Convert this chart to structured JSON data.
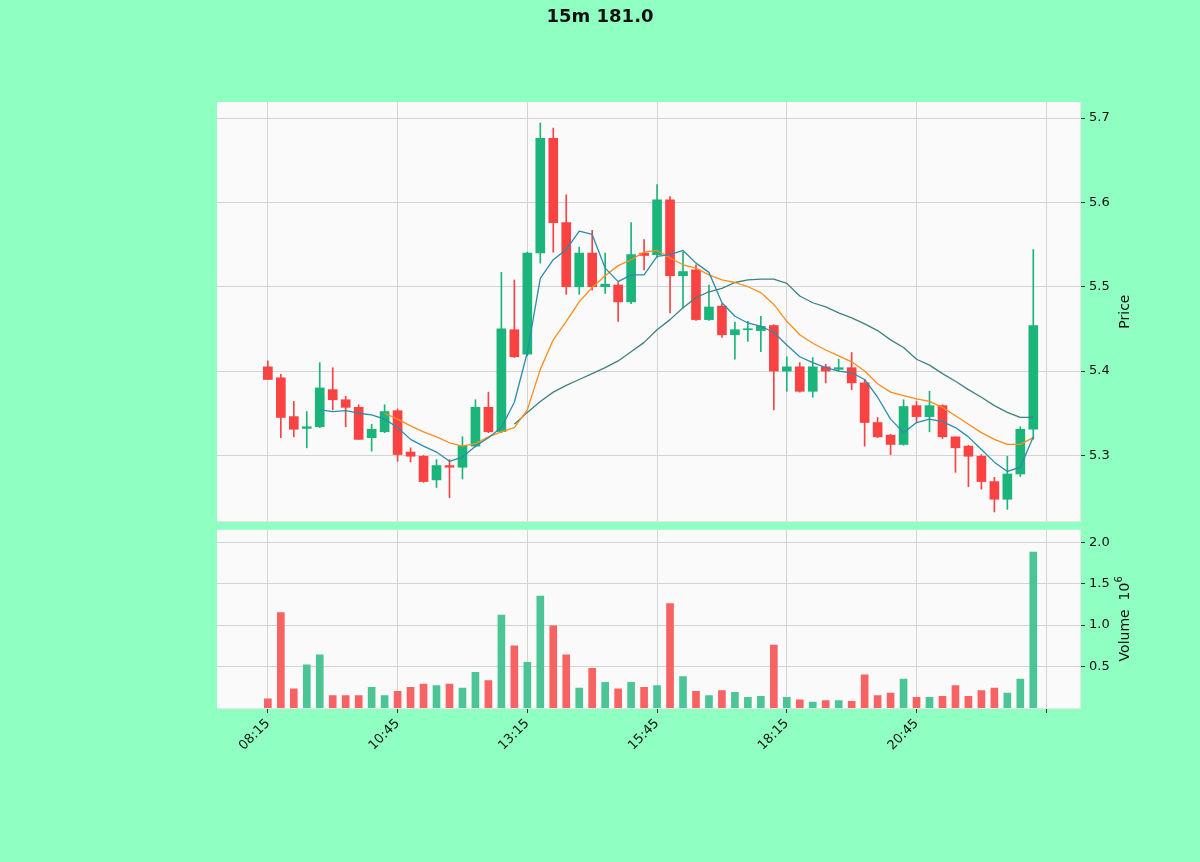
{
  "chart_data": [
    {
      "type": "candlestick",
      "title": "15m 181.0",
      "ylabel": "Price",
      "tick_labels": "y",
      "grid": true,
      "x": [
        8.25,
        8.5,
        8.75,
        9,
        9.25,
        9.5,
        9.75,
        10,
        10.25,
        10.5,
        10.75,
        11,
        11.25,
        11.5,
        11.75,
        12,
        12.25,
        12.5,
        12.75,
        13,
        13.25,
        13.5,
        13.75,
        14,
        14.25,
        14.5,
        14.75,
        15,
        15.25,
        15.5,
        15.75,
        16,
        16.25,
        16.5,
        16.75,
        17,
        17.25,
        17.5,
        17.75,
        18,
        18.25,
        18.5,
        18.75,
        19,
        19.25,
        19.5,
        19.75,
        20,
        20.25,
        20.5,
        20.75,
        21,
        21.25,
        21.5,
        21.75,
        22,
        22.25,
        22.5,
        22.75,
        23
      ],
      "xlim": [
        7.27,
        23.9
      ],
      "xticks": [
        {
          "value": 8.25,
          "label": null
        },
        {
          "value": 10.75,
          "label": null
        },
        {
          "value": 13.25,
          "label": null
        },
        {
          "value": 15.75,
          "label": null
        },
        {
          "value": 18.25,
          "label": null
        },
        {
          "value": 20.75,
          "label": null
        },
        {
          "value": 23.25,
          "label": null
        }
      ],
      "ylim": [
        5.222,
        5.719
      ],
      "yticks": [
        5.3,
        5.4,
        5.5,
        5.6,
        5.7
      ],
      "ohlc": [
        [
          5.405,
          5.412,
          5.39,
          5.39
        ],
        [
          5.392,
          5.396,
          5.321,
          5.345
        ],
        [
          5.346,
          5.364,
          5.322,
          5.331
        ],
        [
          5.332,
          5.352,
          5.309,
          5.334
        ],
        [
          5.334,
          5.41,
          5.333,
          5.38
        ],
        [
          5.378,
          5.404,
          5.354,
          5.366
        ],
        [
          5.366,
          5.37,
          5.334,
          5.357
        ],
        [
          5.357,
          5.36,
          5.319,
          5.319
        ],
        [
          5.321,
          5.337,
          5.305,
          5.331
        ],
        [
          5.328,
          5.36,
          5.327,
          5.352
        ],
        [
          5.353,
          5.355,
          5.293,
          5.301
        ],
        [
          5.304,
          5.309,
          5.292,
          5.299
        ],
        [
          5.299,
          5.3,
          5.268,
          5.269
        ],
        [
          5.271,
          5.295,
          5.262,
          5.288
        ],
        [
          5.288,
          5.295,
          5.25,
          5.286
        ],
        [
          5.286,
          5.322,
          5.272,
          5.311
        ],
        [
          5.311,
          5.366,
          5.31,
          5.357
        ],
        [
          5.357,
          5.375,
          5.327,
          5.328
        ],
        [
          5.328,
          5.517,
          5.327,
          5.45
        ],
        [
          5.449,
          5.508,
          5.416,
          5.417
        ],
        [
          5.42,
          5.541,
          5.418,
          5.54
        ],
        [
          5.54,
          5.694,
          5.528,
          5.676
        ],
        [
          5.676,
          5.688,
          5.541,
          5.576
        ],
        [
          5.576,
          5.609,
          5.491,
          5.5
        ],
        [
          5.5,
          5.547,
          5.491,
          5.54
        ],
        [
          5.54,
          5.567,
          5.496,
          5.5
        ],
        [
          5.5,
          5.54,
          5.492,
          5.503
        ],
        [
          5.502,
          5.505,
          5.459,
          5.482
        ],
        [
          5.482,
          5.576,
          5.48,
          5.538
        ],
        [
          5.54,
          5.556,
          5.52,
          5.537
        ],
        [
          5.538,
          5.621,
          5.535,
          5.603
        ],
        [
          5.603,
          5.607,
          5.469,
          5.513
        ],
        [
          5.513,
          5.541,
          5.475,
          5.518
        ],
        [
          5.52,
          5.526,
          5.46,
          5.461
        ],
        [
          5.461,
          5.502,
          5.46,
          5.476
        ],
        [
          5.477,
          5.48,
          5.44,
          5.443
        ],
        [
          5.443,
          5.458,
          5.414,
          5.449
        ],
        [
          5.449,
          5.459,
          5.435,
          5.45
        ],
        [
          5.448,
          5.465,
          5.423,
          5.453
        ],
        [
          5.454,
          5.455,
          5.354,
          5.4
        ],
        [
          5.4,
          5.417,
          5.376,
          5.405
        ],
        [
          5.405,
          5.41,
          5.375,
          5.376
        ],
        [
          5.376,
          5.416,
          5.369,
          5.405
        ],
        [
          5.405,
          5.408,
          5.386,
          5.4
        ],
        [
          5.402,
          5.414,
          5.4,
          5.404
        ],
        [
          5.404,
          5.422,
          5.378,
          5.386
        ],
        [
          5.386,
          5.39,
          5.311,
          5.339
        ],
        [
          5.339,
          5.345,
          5.321,
          5.322
        ],
        [
          5.324,
          5.325,
          5.301,
          5.313
        ],
        [
          5.313,
          5.366,
          5.312,
          5.358
        ],
        [
          5.359,
          5.364,
          5.339,
          5.346
        ],
        [
          5.346,
          5.376,
          5.328,
          5.359
        ],
        [
          5.359,
          5.36,
          5.32,
          5.322
        ],
        [
          5.322,
          5.322,
          5.28,
          5.309
        ],
        [
          5.311,
          5.312,
          5.263,
          5.299
        ],
        [
          5.299,
          5.301,
          5.26,
          5.269
        ],
        [
          5.269,
          5.274,
          5.233,
          5.248
        ],
        [
          5.248,
          5.299,
          5.236,
          5.278
        ],
        [
          5.278,
          5.334,
          5.275,
          5.331
        ],
        [
          5.331,
          5.544,
          5.319,
          5.454
        ]
      ],
      "colors": [
        "#f94343",
        "#f94343",
        "#f94343",
        "#1bb47b",
        "#1bb47b",
        "#f94343",
        "#f94343",
        "#f94343",
        "#1bb47b",
        "#1bb47b",
        "#f94343",
        "#f94343",
        "#f94343",
        "#1bb47b",
        "#f94343",
        "#1bb47b",
        "#1bb47b",
        "#f94343",
        "#1bb47b",
        "#f94343",
        "#1bb47b",
        "#1bb47b",
        "#f94343",
        "#f94343",
        "#1bb47b",
        "#f94343",
        "#1bb47b",
        "#f94343",
        "#1bb47b",
        "#f94343",
        "#1bb47b",
        "#f94343",
        "#1bb47b",
        "#f94343",
        "#1bb47b",
        "#f94343",
        "#1bb47b",
        "#1bb47b",
        "#1bb47b",
        "#f94343",
        "#1bb47b",
        "#f94343",
        "#1bb47b",
        "#f94343",
        "#1bb47b",
        "#f94343",
        "#f94343",
        "#f94343",
        "#f94343",
        "#1bb47b",
        "#f94343",
        "#1bb47b",
        "#f94343",
        "#f94343",
        "#f94343",
        "#f94343",
        "#f94343",
        "#1bb47b",
        "#1bb47b",
        "#1bb47b"
      ],
      "series": [
        {
          "type": "line",
          "color": "#2b8cab",
          "values": [
            null,
            null,
            null,
            null,
            5.354,
            5.352,
            5.353,
            5.35,
            5.348,
            5.343,
            5.333,
            5.319,
            5.311,
            5.304,
            5.293,
            5.298,
            5.311,
            5.321,
            5.333,
            5.363,
            5.422,
            5.51,
            5.532,
            5.544,
            5.566,
            5.562,
            5.522,
            5.506,
            5.514,
            5.514,
            5.536,
            5.538,
            5.543,
            5.528,
            5.517,
            5.481,
            5.465,
            5.457,
            5.453,
            5.446,
            5.431,
            5.417,
            5.41,
            5.404,
            5.4,
            5.398,
            5.39,
            5.369,
            5.343,
            5.327,
            5.339,
            5.343,
            5.34,
            5.333,
            5.322,
            5.307,
            5.292,
            5.281,
            5.286,
            5.322
          ]
        },
        {
          "type": "line",
          "color": "#ff8c1a",
          "values": [
            null,
            null,
            null,
            null,
            null,
            null,
            null,
            null,
            null,
            5.35,
            5.343,
            5.335,
            5.328,
            5.322,
            5.315,
            5.311,
            5.314,
            5.322,
            5.328,
            5.333,
            5.354,
            5.402,
            5.437,
            5.459,
            5.482,
            5.499,
            5.513,
            5.525,
            5.532,
            5.541,
            5.543,
            5.534,
            5.526,
            5.522,
            5.514,
            5.508,
            5.505,
            5.5,
            5.493,
            5.479,
            5.459,
            5.443,
            5.433,
            5.425,
            5.418,
            5.411,
            5.4,
            5.385,
            5.375,
            5.371,
            5.367,
            5.364,
            5.357,
            5.347,
            5.337,
            5.327,
            5.319,
            5.313,
            5.313,
            5.321
          ]
        },
        {
          "type": "line",
          "color": "#3f8080",
          "values": [
            null,
            null,
            null,
            null,
            null,
            null,
            null,
            null,
            null,
            null,
            null,
            null,
            null,
            null,
            null,
            null,
            null,
            null,
            null,
            5.337,
            5.351,
            5.364,
            5.375,
            5.383,
            5.39,
            5.397,
            5.404,
            5.412,
            5.423,
            5.434,
            5.449,
            5.461,
            5.475,
            5.487,
            5.494,
            5.498,
            5.505,
            5.508,
            5.509,
            5.509,
            5.504,
            5.489,
            5.481,
            5.476,
            5.469,
            5.463,
            5.456,
            5.448,
            5.437,
            5.428,
            5.414,
            5.407,
            5.397,
            5.388,
            5.378,
            5.369,
            5.359,
            5.351,
            5.345,
            5.345
          ]
        }
      ]
    },
    {
      "type": "bar",
      "ylabel": "Volume  10$^{6}$",
      "grid": true,
      "x": [
        8.25,
        8.5,
        8.75,
        9,
        9.25,
        9.5,
        9.75,
        10,
        10.25,
        10.5,
        10.75,
        11,
        11.25,
        11.5,
        11.75,
        12,
        12.25,
        12.5,
        12.75,
        13,
        13.25,
        13.5,
        13.75,
        14,
        14.25,
        14.5,
        14.75,
        15,
        15.25,
        15.5,
        15.75,
        16,
        16.25,
        16.5,
        16.75,
        17,
        17.25,
        17.5,
        17.75,
        18,
        18.25,
        18.5,
        18.75,
        19,
        19.25,
        19.5,
        19.75,
        20,
        20.25,
        20.5,
        20.75,
        21,
        21.25,
        21.5,
        21.75,
        22,
        22.25,
        22.5,
        22.75,
        23
      ],
      "xlim": [
        7.27,
        23.9
      ],
      "xticks": [
        {
          "value": 8.25,
          "label": "08:15"
        },
        {
          "value": 10.75,
          "label": "10:45"
        },
        {
          "value": 13.25,
          "label": "13:15"
        },
        {
          "value": 15.75,
          "label": "15:45"
        },
        {
          "value": 18.25,
          "label": "18:15"
        },
        {
          "value": 20.75,
          "label": "20:45"
        },
        {
          "value": 23.25,
          "label": null
        }
      ],
      "ylim": [
        0,
        2.15
      ],
      "yticks": [
        0.5,
        {
          "value": 1,
          "label": "1.0"
        },
        1.5,
        {
          "value": 2,
          "label": "2.0"
        }
      ],
      "values": [
        0.11,
        1.15,
        0.23,
        0.52,
        0.64,
        0.15,
        0.15,
        0.15,
        0.25,
        0.15,
        0.2,
        0.25,
        0.29,
        0.27,
        0.29,
        0.24,
        0.43,
        0.33,
        1.12,
        0.75,
        0.55,
        1.35,
        0.99,
        0.64,
        0.24,
        0.48,
        0.31,
        0.23,
        0.31,
        0.25,
        0.27,
        1.26,
        0.38,
        0.2,
        0.15,
        0.21,
        0.19,
        0.13,
        0.14,
        0.76,
        0.13,
        0.1,
        0.07,
        0.09,
        0.09,
        0.08,
        0.4,
        0.15,
        0.18,
        0.35,
        0.13,
        0.13,
        0.14,
        0.27,
        0.14,
        0.21,
        0.24,
        0.18,
        0.35,
        1.88
      ],
      "colors": [
        "#f76262",
        "#f76262",
        "#f76262",
        "#4cc596",
        "#4cc596",
        "#f76262",
        "#f76262",
        "#f76262",
        "#4cc596",
        "#4cc596",
        "#f76262",
        "#f76262",
        "#f76262",
        "#4cc596",
        "#f76262",
        "#4cc596",
        "#4cc596",
        "#f76262",
        "#4cc596",
        "#f76262",
        "#4cc596",
        "#4cc596",
        "#f76262",
        "#f76262",
        "#4cc596",
        "#f76262",
        "#4cc596",
        "#f76262",
        "#4cc596",
        "#f76262",
        "#4cc596",
        "#f76262",
        "#4cc596",
        "#f76262",
        "#4cc596",
        "#f76262",
        "#4cc596",
        "#4cc596",
        "#4cc596",
        "#f76262",
        "#4cc596",
        "#f76262",
        "#4cc596",
        "#f76262",
        "#4cc596",
        "#f76262",
        "#f76262",
        "#f76262",
        "#f76262",
        "#4cc596",
        "#f76262",
        "#4cc596",
        "#f76262",
        "#f76262",
        "#f76262",
        "#f76262",
        "#f76262",
        "#4cc596",
        "#4cc596",
        "#4cc596"
      ]
    }
  ]
}
